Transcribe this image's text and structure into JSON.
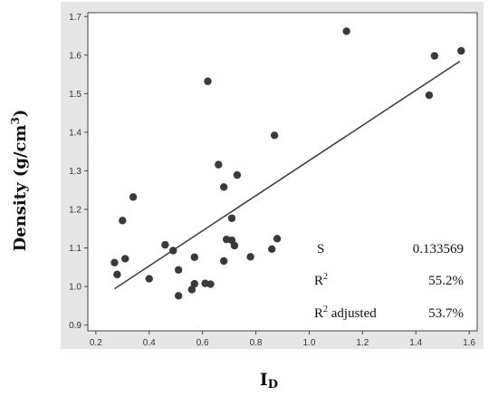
{
  "chart_data": {
    "type": "scatter",
    "title": "",
    "xlabel": "I",
    "xlabel_sub": "D",
    "ylabel": "Density (g/cm",
    "ylabel_sup": "3",
    "ylabel_close": ")",
    "xlim": [
      0.17,
      1.63
    ],
    "ylim": [
      0.885,
      1.71
    ],
    "xticks": [
      0.2,
      0.4,
      0.6,
      0.8,
      1.0,
      1.2,
      1.4,
      1.6
    ],
    "xtick_labels": [
      "0.2",
      "0.4",
      "0.6",
      "0.8",
      "1.0",
      "1.2",
      "1.4",
      "1.6"
    ],
    "yticks": [
      0.9,
      1.0,
      1.1,
      1.2,
      1.3,
      1.4,
      1.5,
      1.6,
      1.7
    ],
    "ytick_labels": [
      "0.9",
      "1.0",
      "1.1",
      "1.2",
      "1.3",
      "1.4",
      "1.5",
      "1.6",
      "1.7"
    ],
    "grid": false,
    "points": [
      {
        "x": 0.27,
        "y": 1.062
      },
      {
        "x": 0.28,
        "y": 1.031
      },
      {
        "x": 0.3,
        "y": 1.171
      },
      {
        "x": 0.31,
        "y": 1.072
      },
      {
        "x": 0.34,
        "y": 1.232
      },
      {
        "x": 0.4,
        "y": 1.02
      },
      {
        "x": 0.46,
        "y": 1.108
      },
      {
        "x": 0.49,
        "y": 1.093
      },
      {
        "x": 0.51,
        "y": 1.043
      },
      {
        "x": 0.51,
        "y": 0.976
      },
      {
        "x": 0.56,
        "y": 0.992
      },
      {
        "x": 0.57,
        "y": 1.007
      },
      {
        "x": 0.57,
        "y": 1.076
      },
      {
        "x": 0.61,
        "y": 1.008
      },
      {
        "x": 0.62,
        "y": 1.532
      },
      {
        "x": 0.63,
        "y": 1.006
      },
      {
        "x": 0.66,
        "y": 1.316
      },
      {
        "x": 0.68,
        "y": 1.258
      },
      {
        "x": 0.68,
        "y": 1.066
      },
      {
        "x": 0.69,
        "y": 1.122
      },
      {
        "x": 0.71,
        "y": 1.12
      },
      {
        "x": 0.71,
        "y": 1.177
      },
      {
        "x": 0.72,
        "y": 1.106
      },
      {
        "x": 0.73,
        "y": 1.289
      },
      {
        "x": 0.78,
        "y": 1.077
      },
      {
        "x": 0.86,
        "y": 1.097
      },
      {
        "x": 0.87,
        "y": 1.392
      },
      {
        "x": 0.88,
        "y": 1.124
      },
      {
        "x": 1.14,
        "y": 1.662
      },
      {
        "x": 1.45,
        "y": 1.496
      },
      {
        "x": 1.47,
        "y": 1.598
      },
      {
        "x": 1.57,
        "y": 1.611
      }
    ],
    "fit_line": {
      "x": [
        0.27,
        1.565
      ],
      "y": [
        0.994,
        1.584
      ]
    },
    "stats": [
      {
        "label": "S",
        "label_sup": "",
        "label_rest": "",
        "value": "0.133569"
      },
      {
        "label": "R",
        "label_sup": "2",
        "label_rest": "",
        "value": "55.2%"
      },
      {
        "label": "R",
        "label_sup": "2",
        "label_rest": " adjusted",
        "value": "53.7%"
      }
    ],
    "colors": {
      "marker": "#3a3a3a",
      "line": "#3a3a3a",
      "frame_background": "#e6e6e6",
      "plot_background": "#ffffff"
    }
  }
}
